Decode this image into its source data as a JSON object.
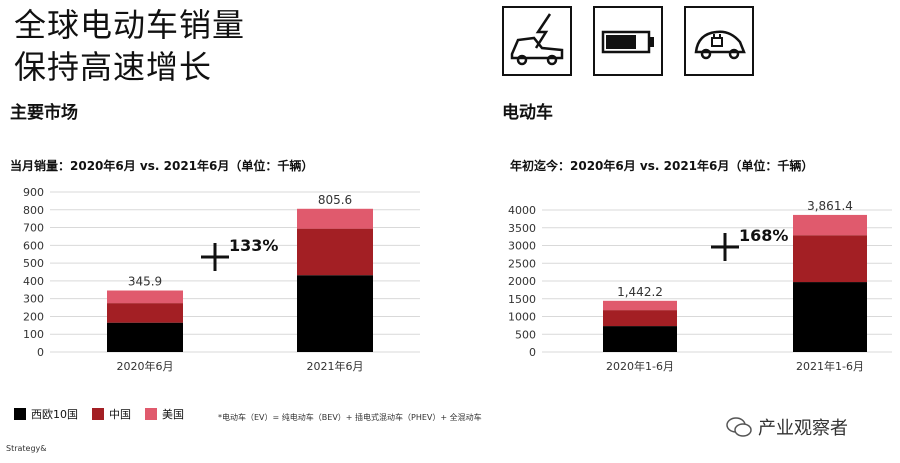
{
  "title": {
    "line1": "全球电动车销量",
    "line2": "保持高速增长"
  },
  "left": {
    "section": "主要市场",
    "subtitle": "当月销量：2020年6月 vs. 2021年6月（单位：千辆）"
  },
  "right": {
    "section": "电动车",
    "subtitle": "年初迄今：2020年6月 vs. 2021年6月（单位：千辆）"
  },
  "icons": [
    "car-lightning-icon",
    "battery-icon",
    "electric-car-plug-icon"
  ],
  "colors": {
    "europe": "#000000",
    "china": "#a31f24",
    "usa": "#e05a6d"
  },
  "legend": [
    {
      "label": "西欧10国",
      "color": "#000000"
    },
    {
      "label": "中国",
      "color": "#a31f24"
    },
    {
      "label": "美国",
      "color": "#e05a6d"
    }
  ],
  "footnote": "*电动车（EV）= 纯电动车（BEV）+ 插电式混动车（PHEV）+ 全混动车",
  "brand": "Strategy&",
  "watermark": "产业观察者",
  "chart_data": [
    {
      "type": "bar",
      "stacked": true,
      "categories": [
        "2020年6月",
        "2021年6月"
      ],
      "series": [
        {
          "name": "西欧10国",
          "values": [
            165,
            432
          ]
        },
        {
          "name": "中国",
          "values": [
            110,
            262
          ]
        },
        {
          "name": "美国",
          "values": [
            70.9,
            111.6
          ]
        }
      ],
      "totals": [
        345.9,
        805.6
      ],
      "total_labels": [
        "345.9",
        "805.6"
      ],
      "annotation": "+133%",
      "ylim": [
        0,
        900
      ],
      "yticks": [
        0,
        100,
        200,
        300,
        400,
        500,
        600,
        700,
        800,
        900
      ],
      "grid": true
    },
    {
      "type": "bar",
      "stacked": true,
      "categories": [
        "2020年1-6月",
        "2021年1-6月"
      ],
      "series": [
        {
          "name": "西欧10国",
          "values": [
            730,
            1970
          ]
        },
        {
          "name": "中国",
          "values": [
            450,
            1320
          ]
        },
        {
          "name": "美国",
          "values": [
            262.2,
            571.4
          ]
        }
      ],
      "totals": [
        1442.2,
        3861.4
      ],
      "total_labels": [
        "1,442.2",
        "3,861.4"
      ],
      "annotation": "+168%",
      "ylim": [
        0,
        4000
      ],
      "yticks": [
        0,
        500,
        1000,
        1500,
        2000,
        2500,
        3000,
        3500,
        4000
      ],
      "grid": true
    }
  ]
}
